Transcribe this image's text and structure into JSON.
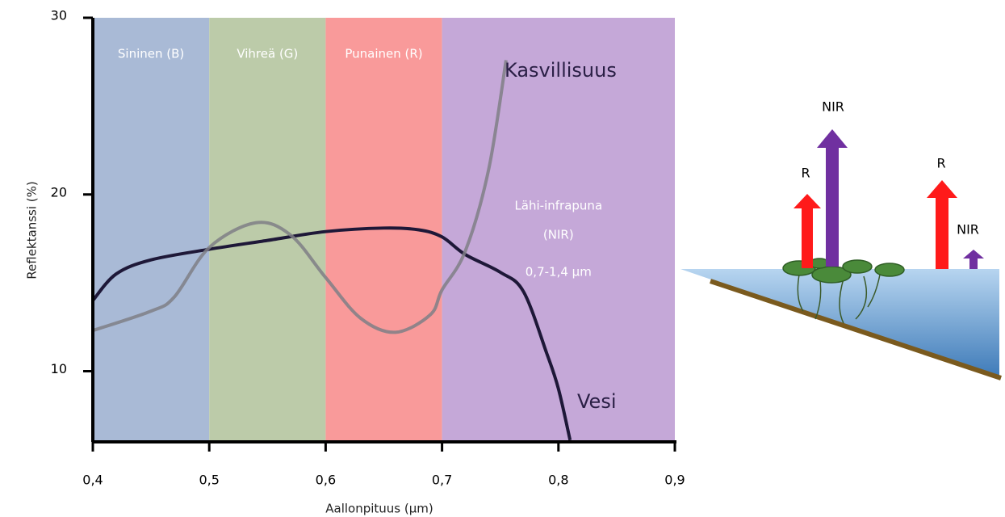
{
  "chart_data": {
    "type": "line",
    "xlabel": "Aallonpituus (µm)",
    "ylabel": "Reflektanssi (%)",
    "xlim": [
      0.4,
      0.9
    ],
    "xticks": [
      {
        "value": 0.4,
        "label": "0,4"
      },
      {
        "value": 0.5,
        "label": "0,5"
      },
      {
        "value": 0.6,
        "label": "0,6"
      },
      {
        "value": 0.7,
        "label": "0,7"
      },
      {
        "value": 0.8,
        "label": "0,8"
      },
      {
        "value": 0.9,
        "label": "0,9"
      }
    ],
    "ylim": [
      6,
      30
    ],
    "yticks": [
      10,
      20,
      30
    ],
    "bands": [
      {
        "labels": [
          "Sininen (B)"
        ],
        "start": 0.4,
        "end": 0.5,
        "color": "#a9bad6"
      },
      {
        "labels": [
          "Vihreä (G)"
        ],
        "start": 0.5,
        "end": 0.6,
        "color": "#bccba9"
      },
      {
        "labels": [
          "Punainen (R)"
        ],
        "start": 0.6,
        "end": 0.7,
        "color": "#f99a9a"
      },
      {
        "labels": [
          "Lähi-infrapuna",
          "(NIR)",
          "0,7-1,4 µm"
        ],
        "start": 0.7,
        "end": 0.9,
        "color": "#c5a8d8"
      }
    ],
    "series": [
      {
        "name": "Vesi",
        "color": "#1e1838",
        "x": [
          0.4,
          0.42,
          0.45,
          0.5,
          0.55,
          0.6,
          0.65,
          0.68,
          0.7,
          0.72,
          0.75,
          0.77,
          0.79,
          0.8,
          0.81
        ],
        "values": [
          14.0,
          15.5,
          16.3,
          16.9,
          17.4,
          17.9,
          18.1,
          18.0,
          17.6,
          16.6,
          15.6,
          14.5,
          11.0,
          9.0,
          6.1
        ]
      },
      {
        "name": "Kasvillisuus",
        "color": "#7f7f86",
        "x": [
          0.4,
          0.45,
          0.47,
          0.5,
          0.54,
          0.57,
          0.6,
          0.63,
          0.66,
          0.69,
          0.7,
          0.72,
          0.74,
          0.755
        ],
        "values": [
          12.3,
          13.4,
          14.2,
          17.0,
          18.4,
          17.7,
          15.3,
          13.0,
          12.2,
          13.2,
          14.6,
          16.8,
          21.4,
          27.6
        ]
      }
    ]
  },
  "diagram": {
    "labels": [
      "NIR",
      "R",
      "R",
      "NIR"
    ]
  }
}
